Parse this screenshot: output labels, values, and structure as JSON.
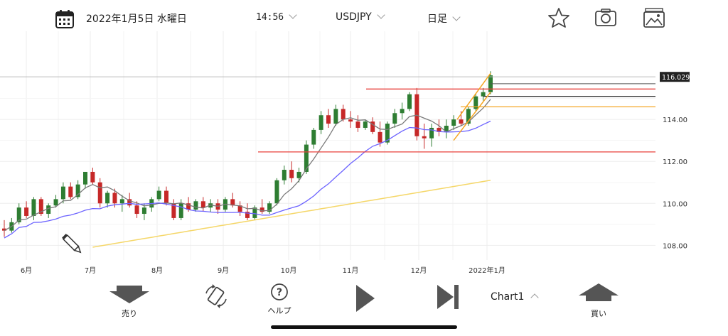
{
  "header": {
    "date": "2022年1月5日 水曜日",
    "time": "14:56",
    "symbol": "USDJPY",
    "timeframe": "日足",
    "icons": [
      "calendar-icon",
      "star-icon",
      "camera-icon",
      "gallery-icon"
    ]
  },
  "chart_data": {
    "type": "candlestick",
    "symbol": "USDJPY",
    "timeframe": "daily",
    "current_price": "116.029",
    "y_ticks": [
      "114.00",
      "112.00",
      "110.00",
      "108.00"
    ],
    "ylim": [
      107.3,
      118.0
    ],
    "x_ticks": [
      "6月",
      "7月",
      "8月",
      "9月",
      "10月",
      "11月",
      "12月",
      "2022年1月"
    ],
    "candles_ohlc_approx": [
      [
        108.8,
        109.2,
        108.4,
        108.7
      ],
      [
        108.7,
        109.3,
        108.6,
        109.1
      ],
      [
        109.1,
        110.0,
        109.0,
        109.8
      ],
      [
        109.8,
        110.1,
        109.3,
        109.4
      ],
      [
        109.4,
        110.3,
        109.2,
        110.2
      ],
      [
        110.2,
        110.3,
        109.4,
        109.5
      ],
      [
        109.5,
        110.0,
        109.3,
        109.9
      ],
      [
        109.9,
        110.4,
        109.8,
        110.2
      ],
      [
        110.2,
        111.0,
        110.0,
        110.8
      ],
      [
        110.8,
        111.0,
        110.2,
        110.3
      ],
      [
        110.3,
        111.1,
        110.2,
        110.9
      ],
      [
        110.9,
        111.5,
        110.7,
        111.5
      ],
      [
        111.5,
        111.7,
        110.9,
        111.0
      ],
      [
        111.0,
        111.2,
        109.8,
        110.0
      ],
      [
        110.0,
        110.6,
        109.8,
        110.5
      ],
      [
        110.5,
        110.7,
        109.8,
        110.0
      ],
      [
        110.0,
        110.4,
        109.6,
        110.2
      ],
      [
        110.2,
        110.5,
        109.8,
        109.9
      ],
      [
        109.9,
        110.1,
        109.3,
        109.5
      ],
      [
        109.5,
        110.0,
        109.2,
        109.8
      ],
      [
        109.8,
        110.3,
        109.6,
        110.2
      ],
      [
        110.2,
        110.8,
        110.1,
        110.6
      ],
      [
        110.6,
        110.8,
        109.9,
        110.0
      ],
      [
        110.0,
        110.2,
        109.2,
        109.3
      ],
      [
        109.3,
        110.2,
        109.2,
        110.0
      ],
      [
        110.0,
        110.3,
        109.6,
        109.7
      ],
      [
        109.7,
        110.2,
        109.6,
        110.1
      ],
      [
        110.1,
        110.3,
        109.6,
        109.8
      ],
      [
        109.8,
        110.2,
        109.6,
        110.0
      ],
      [
        110.0,
        110.2,
        109.5,
        109.7
      ],
      [
        109.7,
        110.3,
        109.6,
        110.2
      ],
      [
        110.2,
        110.5,
        109.8,
        109.9
      ],
      [
        109.9,
        110.1,
        109.4,
        109.6
      ],
      [
        109.6,
        110.0,
        109.2,
        109.3
      ],
      [
        109.3,
        109.9,
        109.2,
        109.8
      ],
      [
        109.8,
        110.2,
        109.5,
        109.6
      ],
      [
        109.6,
        110.1,
        109.5,
        110.0
      ],
      [
        110.0,
        111.2,
        109.9,
        111.1
      ],
      [
        111.1,
        111.8,
        110.9,
        111.6
      ],
      [
        111.6,
        112.0,
        111.0,
        111.2
      ],
      [
        111.2,
        111.7,
        111.0,
        111.5
      ],
      [
        111.5,
        113.0,
        111.4,
        112.8
      ],
      [
        112.8,
        113.6,
        112.6,
        113.5
      ],
      [
        113.5,
        114.4,
        113.3,
        114.2
      ],
      [
        114.2,
        114.5,
        113.6,
        113.8
      ],
      [
        113.8,
        114.7,
        113.7,
        114.5
      ],
      [
        114.5,
        114.7,
        113.9,
        114.0
      ],
      [
        114.0,
        114.4,
        113.6,
        113.9
      ],
      [
        113.9,
        114.2,
        113.4,
        113.6
      ],
      [
        113.6,
        114.0,
        113.5,
        113.9
      ],
      [
        113.9,
        114.1,
        113.3,
        113.4
      ],
      [
        113.4,
        113.9,
        112.7,
        112.9
      ],
      [
        112.9,
        113.9,
        112.8,
        113.8
      ],
      [
        113.8,
        114.5,
        113.6,
        114.3
      ],
      [
        114.3,
        114.8,
        114.0,
        114.5
      ],
      [
        114.5,
        115.3,
        114.4,
        115.2
      ],
      [
        115.2,
        115.5,
        113.0,
        113.2
      ],
      [
        113.2,
        113.8,
        112.6,
        113.1
      ],
      [
        113.1,
        113.8,
        112.7,
        113.6
      ],
      [
        113.6,
        114.0,
        113.2,
        113.4
      ],
      [
        113.4,
        114.0,
        113.1,
        113.7
      ],
      [
        113.7,
        114.2,
        113.5,
        114.0
      ],
      [
        114.0,
        114.4,
        113.7,
        113.8
      ],
      [
        113.8,
        114.6,
        113.7,
        114.5
      ],
      [
        114.5,
        115.2,
        114.4,
        115.1
      ],
      [
        115.1,
        115.5,
        114.9,
        115.3
      ],
      [
        115.3,
        116.3,
        115.2,
        116.1
      ]
    ],
    "horizontal_lines": [
      {
        "value": 115.45,
        "color": "#e8403c"
      },
      {
        "value": 112.45,
        "color": "#e8403c"
      },
      {
        "value": 114.6,
        "color": "#f5a623"
      },
      {
        "value": 115.1,
        "color": "#333333"
      },
      {
        "value": 115.7,
        "color": "#555555"
      },
      {
        "value": 116.03,
        "color": "#bbbbbb"
      }
    ],
    "series": [
      {
        "color": "#7a7a7a",
        "type": "ma"
      },
      {
        "color": "#6c63ff",
        "type": "ma"
      },
      {
        "color": "#f5d769",
        "type": "ma"
      }
    ],
    "colors": {
      "up": "#2e7d32",
      "down": "#c62828"
    }
  },
  "toolbar": {
    "sell_label": "売り",
    "help_label": "ヘルプ",
    "chart_label": "Chart1",
    "buy_label": "買い"
  }
}
